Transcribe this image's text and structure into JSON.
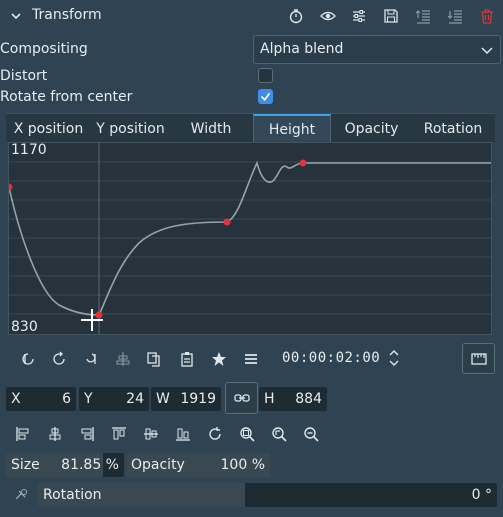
{
  "header": {
    "title": "Transform",
    "icons": [
      "timer-icon",
      "eye-icon",
      "sliders-icon",
      "save-icon",
      "collapse-list-icon",
      "expand-list-icon",
      "trash-icon"
    ]
  },
  "compositing": {
    "label": "Compositing",
    "value": "Alpha blend"
  },
  "distort": {
    "label": "Distort",
    "checked": false
  },
  "rotate_center": {
    "label": "Rotate from center",
    "checked": true
  },
  "tabs": [
    {
      "label": "X position",
      "active": false
    },
    {
      "label": "Y position",
      "active": false
    },
    {
      "label": "Width",
      "active": false
    },
    {
      "label": "Height",
      "active": true
    },
    {
      "label": "Opacity",
      "active": false
    },
    {
      "label": "Rotation",
      "active": false
    }
  ],
  "graph": {
    "y_max": "1170",
    "y_min": "830",
    "curve_color": "#9aa3a8",
    "keyframe_color": "#e0323a"
  },
  "toolbar": {
    "timecode": "00:00:02:00"
  },
  "geometry": {
    "x_label": "X",
    "x_value": "6",
    "y_label": "Y",
    "y_value": "24",
    "w_label": "W",
    "w_value": "1919",
    "h_label": "H",
    "h_value": "884"
  },
  "size": {
    "label": "Size",
    "value": "81.85 %",
    "fill": 0.82
  },
  "opacity": {
    "label": "Opacity",
    "value": "100 %",
    "fill": 1.0
  },
  "rotation": {
    "label": "Rotation",
    "value": "0 °",
    "fill": 0.45
  },
  "colors": {
    "background": "#2f4352",
    "accent": "#3d8ee8",
    "tab_highlight": "#3da3e6"
  }
}
